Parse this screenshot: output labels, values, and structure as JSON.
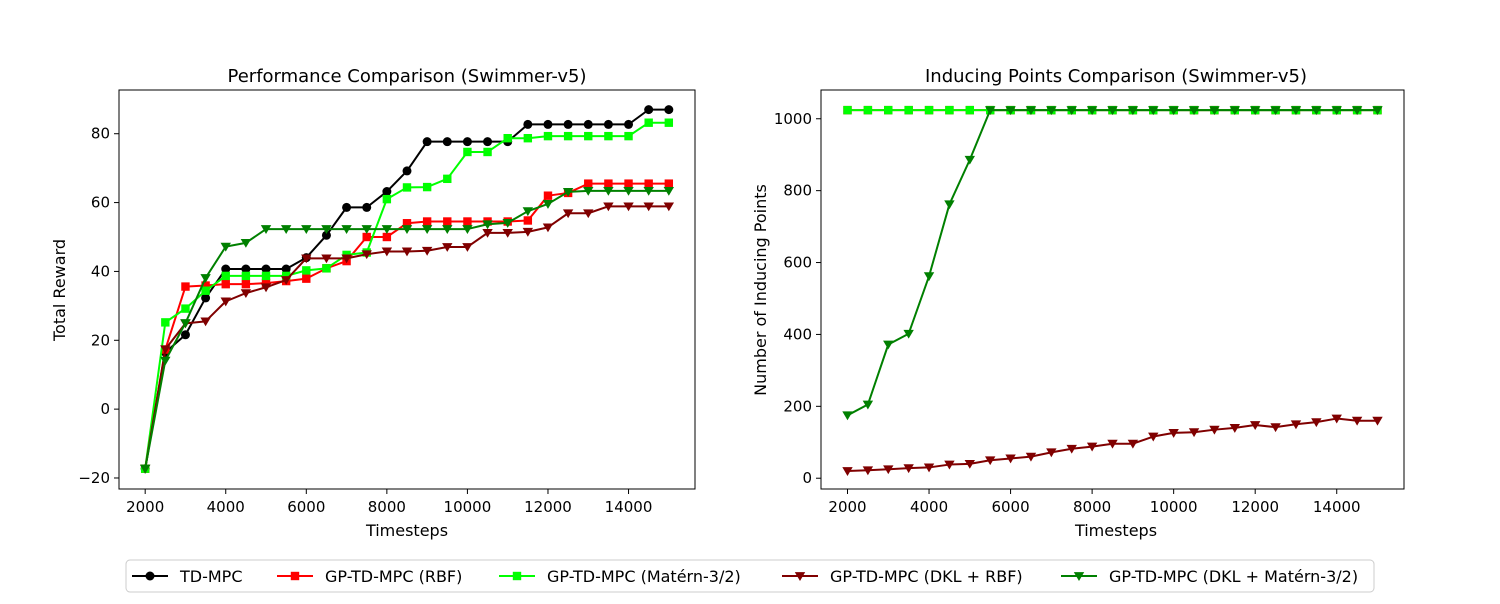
{
  "chart_data": [
    {
      "type": "line",
      "title": "Performance Comparison (Swimmer-v5)",
      "xlabel": "Timesteps",
      "ylabel": "Total Reward",
      "xlim": [
        1350,
        15650
      ],
      "ylim": [
        -23.2,
        92.7
      ],
      "xticks": [
        2000,
        4000,
        6000,
        8000,
        10000,
        12000,
        14000
      ],
      "yticks": [
        -20,
        0,
        20,
        40,
        60,
        80
      ],
      "x": [
        2000,
        2500,
        3000,
        3500,
        4000,
        4500,
        5000,
        5500,
        6000,
        6500,
        7000,
        7500,
        8000,
        8500,
        9000,
        9500,
        10000,
        10500,
        11000,
        11500,
        12000,
        12500,
        13000,
        13500,
        14000,
        14500,
        15000
      ],
      "grid": false,
      "series": [
        {
          "name": "TD-MPC",
          "color": "#000000",
          "marker": "circle",
          "values": [
            -17.3,
            16.5,
            21.6,
            32.3,
            40.7,
            40.7,
            40.7,
            40.7,
            44.0,
            50.5,
            58.6,
            58.6,
            63.2,
            69.2,
            77.7,
            77.7,
            77.7,
            77.7,
            77.7,
            82.7,
            82.7,
            82.7,
            82.7,
            82.7,
            82.7,
            87.0,
            87.0
          ]
        },
        {
          "name": "GP-TD-MPC (RBF)",
          "color": "#ff0000",
          "marker": "square",
          "values": [
            -17.3,
            17.3,
            35.6,
            35.9,
            36.3,
            36.3,
            36.6,
            37.2,
            37.9,
            40.9,
            43.0,
            50.0,
            50.0,
            54.0,
            54.5,
            54.5,
            54.5,
            54.5,
            54.5,
            54.8,
            62.0,
            62.8,
            65.5,
            65.5,
            65.5,
            65.5,
            65.5
          ]
        },
        {
          "name": "GP-TD-MPC (Matérn-3/2)",
          "color": "#00ff00",
          "marker": "square",
          "values": [
            -17.3,
            25.2,
            29.2,
            34.4,
            38.7,
            38.7,
            38.7,
            38.7,
            40.3,
            40.9,
            44.8,
            45.5,
            61.0,
            64.4,
            64.5,
            66.9,
            74.7,
            74.7,
            78.7,
            78.7,
            79.3,
            79.3,
            79.3,
            79.3,
            79.3,
            83.2,
            83.2
          ]
        },
        {
          "name": "GP-TD-MPC (DKL + RBF)",
          "color": "#800000",
          "marker": "triangle-down",
          "values": [
            -17.3,
            17.4,
            24.9,
            25.5,
            31.3,
            33.7,
            35.4,
            37.5,
            43.8,
            43.8,
            43.8,
            45.0,
            45.8,
            45.8,
            46.0,
            47.1,
            47.1,
            51.2,
            51.2,
            51.5,
            52.8,
            56.9,
            56.9,
            58.9,
            58.9,
            58.9,
            58.9
          ]
        },
        {
          "name": "GP-TD-MPC (DKL + Matérn-3/2)",
          "color": "#008000",
          "marker": "triangle-down",
          "values": [
            -17.3,
            14.1,
            25.0,
            38.1,
            47.2,
            48.3,
            52.3,
            52.3,
            52.3,
            52.3,
            52.3,
            52.3,
            52.3,
            52.3,
            52.3,
            52.3,
            52.3,
            53.7,
            54.1,
            57.5,
            59.6,
            63.1,
            63.4,
            63.4,
            63.4,
            63.4,
            63.4
          ]
        }
      ]
    },
    {
      "type": "line",
      "title": "Inducing Points Comparison (Swimmer-v5)",
      "xlabel": "Timesteps",
      "ylabel": "Number of Inducing Points",
      "xlim": [
        1350,
        15650
      ],
      "ylim": [
        -30,
        1080
      ],
      "xticks": [
        2000,
        4000,
        6000,
        8000,
        10000,
        12000,
        14000
      ],
      "yticks": [
        0,
        200,
        400,
        600,
        800,
        1000
      ],
      "x": [
        2000,
        2500,
        3000,
        3500,
        4000,
        4500,
        5000,
        5500,
        6000,
        6500,
        7000,
        7500,
        8000,
        8500,
        9000,
        9500,
        10000,
        10500,
        11000,
        11500,
        12000,
        12500,
        13000,
        13500,
        14000,
        14500,
        15000
      ],
      "grid": false,
      "series": [
        {
          "name": "GP-TD-MPC (RBF)",
          "color": "#ff0000",
          "marker": "square",
          "values": [
            1024,
            1024,
            1024,
            1024,
            1024,
            1024,
            1024,
            1024,
            1024,
            1024,
            1024,
            1024,
            1024,
            1024,
            1024,
            1024,
            1024,
            1024,
            1024,
            1024,
            1024,
            1024,
            1024,
            1024,
            1024,
            1024,
            1024
          ]
        },
        {
          "name": "GP-TD-MPC (Matérn-3/2)",
          "color": "#00ff00",
          "marker": "square",
          "values": [
            1024,
            1024,
            1024,
            1024,
            1024,
            1024,
            1024,
            1024,
            1024,
            1024,
            1024,
            1024,
            1024,
            1024,
            1024,
            1024,
            1024,
            1024,
            1024,
            1024,
            1024,
            1024,
            1024,
            1024,
            1024,
            1024,
            1024
          ]
        },
        {
          "name": "GP-TD-MPC (DKL + RBF)",
          "color": "#800000",
          "marker": "triangle-down",
          "values": [
            20,
            22,
            25,
            28,
            30,
            38,
            40,
            50,
            55,
            60,
            72,
            82,
            88,
            96,
            96,
            116,
            126,
            128,
            135,
            140,
            148,
            142,
            150,
            156,
            166,
            160,
            160
          ]
        },
        {
          "name": "GP-TD-MPC (DKL + Matérn-3/2)",
          "color": "#008000",
          "marker": "triangle-down",
          "values": [
            175,
            205,
            372,
            402,
            562,
            762,
            886,
            1024,
            1024,
            1024,
            1024,
            1024,
            1024,
            1024,
            1024,
            1024,
            1024,
            1024,
            1024,
            1024,
            1024,
            1024,
            1024,
            1024,
            1024,
            1024,
            1024
          ]
        }
      ]
    }
  ],
  "legend": {
    "placement": "bottom-center",
    "entries": [
      {
        "label": "TD-MPC",
        "color": "#000000",
        "marker": "circle"
      },
      {
        "label": "GP-TD-MPC (RBF)",
        "color": "#ff0000",
        "marker": "square"
      },
      {
        "label": "GP-TD-MPC (Matérn-3/2)",
        "color": "#00ff00",
        "marker": "square"
      },
      {
        "label": "GP-TD-MPC (DKL + RBF)",
        "color": "#800000",
        "marker": "triangle-down"
      },
      {
        "label": "GP-TD-MPC (DKL + Matérn-3/2)",
        "color": "#008000",
        "marker": "triangle-down"
      }
    ]
  }
}
